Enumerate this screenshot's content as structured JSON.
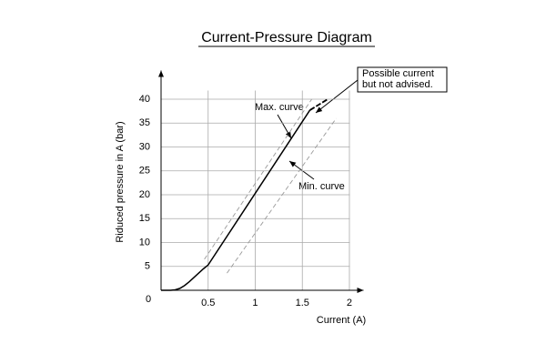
{
  "chart_data": {
    "type": "line",
    "title": "Current-Pressure Diagram",
    "x_label": "Current (A)",
    "y_label": "Riduced pressure in A (bar)",
    "xlim": [
      0,
      2.15
    ],
    "ylim": [
      0,
      46
    ],
    "xticks": [
      0,
      0.5,
      1,
      1.5,
      2
    ],
    "yticks": [
      5,
      10,
      15,
      20,
      25,
      30,
      35,
      40
    ],
    "grid": true,
    "series": [
      {
        "color": "#000000",
        "style": "solid",
        "x": [
          0,
          0.1,
          0.15,
          0.2,
          0.25,
          0.3,
          0.35,
          0.4,
          0.45,
          0.5,
          1,
          1.5,
          1.58
        ],
        "values": [
          0,
          0,
          0.1,
          0.4,
          1,
          1.8,
          2.7,
          3.6,
          4.5,
          5.3,
          20.3,
          35.3,
          37.7
        ]
      },
      {
        "name": "Max. curve",
        "color": "#999999",
        "style": "dashed",
        "x": [
          0.46,
          1.6
        ],
        "values": [
          6.5,
          40
        ]
      },
      {
        "name": "Min. curve",
        "color": "#999999",
        "style": "dashed",
        "x": [
          0.7,
          1.86
        ],
        "values": [
          3.6,
          36
        ]
      },
      {
        "color": "#000000",
        "style": "dashed",
        "x": [
          1.58,
          1.77
        ],
        "values": [
          37.7,
          40
        ]
      }
    ],
    "annotations": [
      {
        "lines": [
          "Possible current",
          "but not advised."
        ]
      }
    ]
  }
}
